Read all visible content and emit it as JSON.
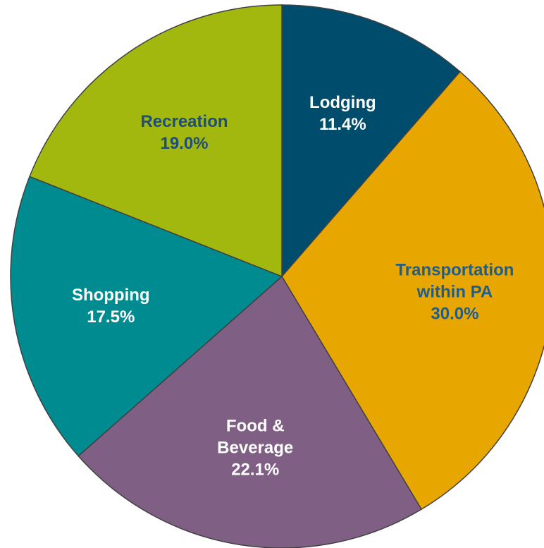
{
  "chart_data": {
    "type": "pie",
    "categories": [
      "Lodging",
      "Transportation within PA",
      "Food & Beverage",
      "Shopping",
      "Recreation"
    ],
    "values": [
      11.4,
      30.0,
      22.1,
      17.5,
      19.0
    ],
    "value_labels": [
      "11.4%",
      "30.0%",
      "22.1%",
      "17.5%",
      "19.0%"
    ],
    "colors": [
      "#004c6d",
      "#e8a700",
      "#7f6084",
      "#008b91",
      "#a2b80f"
    ],
    "label_colors": [
      "#ffffff",
      "#1f5d8c",
      "#ffffff",
      "#ffffff",
      "#1f4e79"
    ]
  }
}
